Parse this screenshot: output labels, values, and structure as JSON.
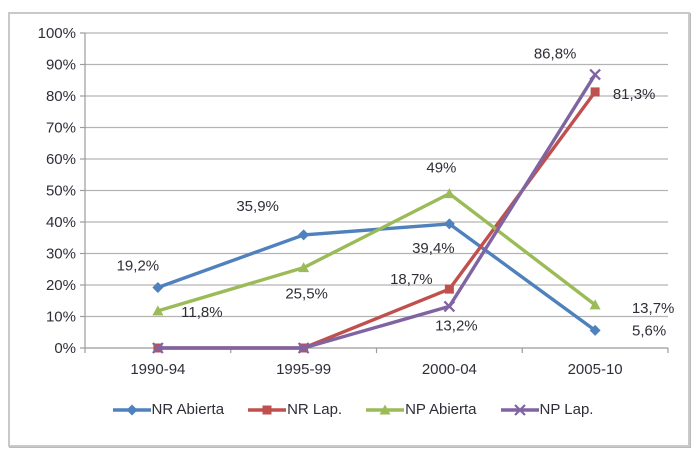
{
  "window": {
    "background_color": "#ffffff",
    "frame_border_color": "#c9c9c9"
  },
  "chart_data": {
    "type": "line",
    "title": "",
    "xlabel": "",
    "ylabel": "",
    "categories": [
      "1990-94",
      "1995-99",
      "2000-04",
      "2005-10"
    ],
    "y_axis": {
      "min": 0,
      "max": 100,
      "step": 10,
      "tick_labels": [
        "0%",
        "10%",
        "20%",
        "30%",
        "40%",
        "50%",
        "60%",
        "70%",
        "80%",
        "90%",
        "100%"
      ]
    },
    "grid": true,
    "legend_position": "bottom",
    "colors": {
      "gridline": "#b3b3b3",
      "axis": "#9b9b9b",
      "text": "#2e2e38"
    },
    "series": [
      {
        "name": "NR Abierta",
        "color": "#4F81BD",
        "marker": "diamond",
        "values": [
          19.2,
          35.9,
          39.4,
          5.6
        ],
        "data_labels": [
          "19,2%",
          "35,9%",
          "39,4%",
          "5,6%"
        ]
      },
      {
        "name": "NR Lap.",
        "color": "#C0504D",
        "marker": "square",
        "values": [
          0,
          0,
          18.7,
          81.3
        ],
        "data_labels": [
          "",
          "",
          "18,7%",
          "81,3%"
        ]
      },
      {
        "name": "NP Abierta",
        "color": "#9BBB59",
        "marker": "triangle",
        "values": [
          11.8,
          25.5,
          49,
          13.7
        ],
        "data_labels": [
          "11,8%",
          "25,5%",
          "49%",
          "13,7%"
        ]
      },
      {
        "name": "NP Lap.",
        "color": "#8064A2",
        "marker": "x",
        "values": [
          0,
          0,
          13.2,
          86.8
        ],
        "data_labels": [
          "",
          "",
          "13,2%",
          "86,8%"
        ]
      }
    ]
  }
}
